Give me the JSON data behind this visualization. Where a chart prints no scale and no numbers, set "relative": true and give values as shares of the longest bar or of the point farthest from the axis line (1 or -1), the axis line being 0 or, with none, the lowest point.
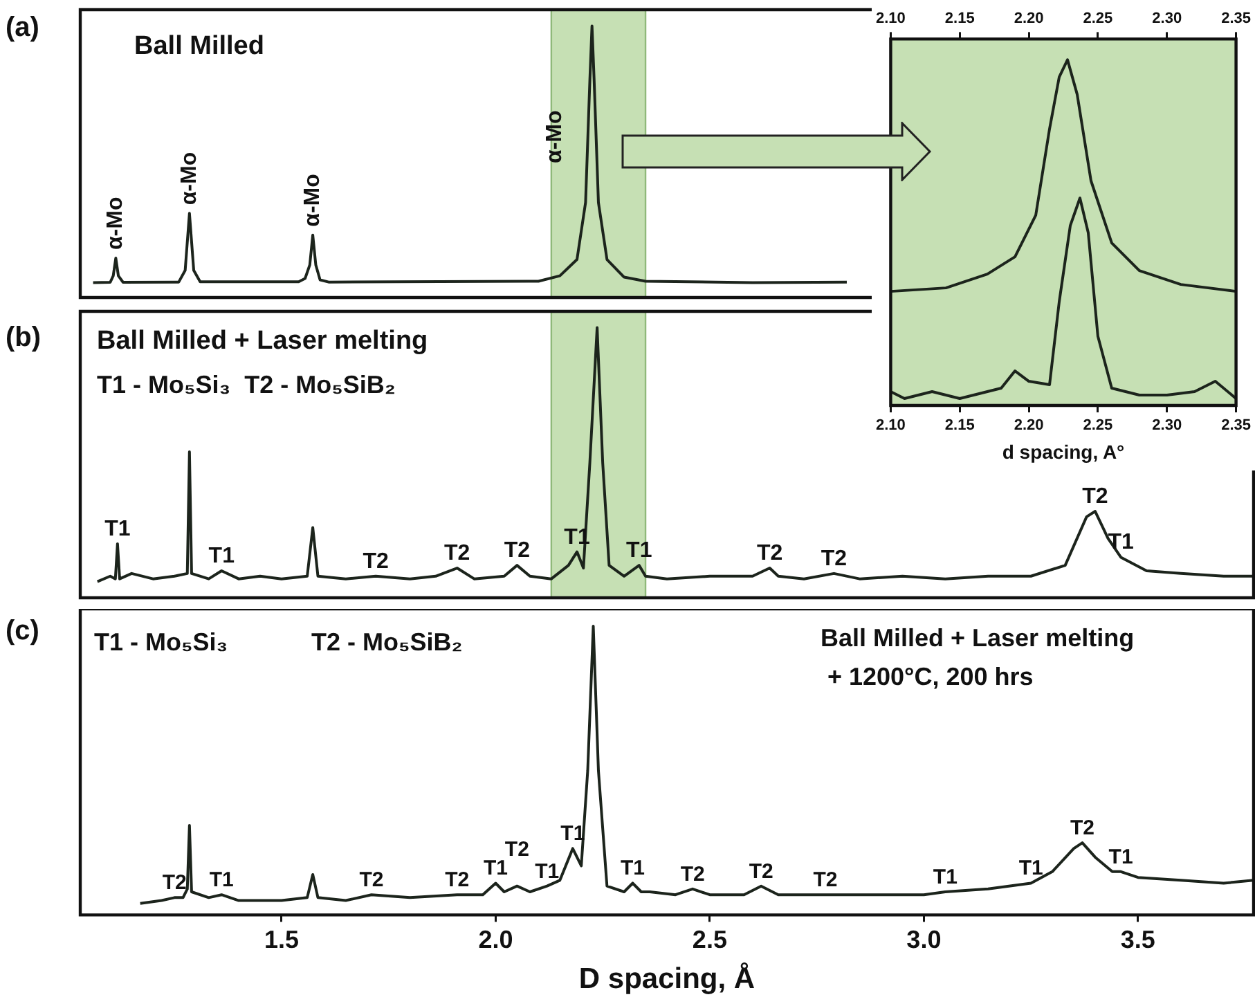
{
  "chart_data": [
    {
      "type": "line",
      "relative": true,
      "xlim": [
        1.03,
        3.77
      ],
      "tick_labels": false,
      "x": [
        1.06,
        1.1,
        1.107,
        1.113,
        1.119,
        1.13,
        1.26,
        1.275,
        1.285,
        1.295,
        1.31,
        1.54,
        1.555,
        1.566,
        1.573,
        1.58,
        1.59,
        1.61,
        2.1,
        2.15,
        2.19,
        2.21,
        2.22,
        2.225,
        2.23,
        2.24,
        2.26,
        2.3,
        2.35,
        2.6,
        2.82
      ],
      "series": [
        {
          "color": "#1c241c",
          "values": [
            0.055,
            0.056,
            0.08,
            0.145,
            0.08,
            0.056,
            0.057,
            0.1,
            0.31,
            0.1,
            0.058,
            0.058,
            0.07,
            0.12,
            0.23,
            0.12,
            0.065,
            0.057,
            0.06,
            0.08,
            0.14,
            0.35,
            0.8,
            1.0,
            0.8,
            0.35,
            0.14,
            0.075,
            0.06,
            0.055,
            0.057
          ]
        }
      ],
      "bands": [
        {
          "axis": "x",
          "from": 2.13,
          "to": 2.35,
          "color": "#c6e0b4"
        }
      ],
      "annotations": [
        "(a)",
        "Ball Milled",
        "α-Mo",
        {
          "text": "α-Mo",
          "x": 1.113,
          "y": 0.145
        },
        {
          "text": "α-Mo",
          "x": 1.285,
          "y": 0.31
        },
        {
          "text": "α-Mo",
          "x": 1.573,
          "y": 0.23
        }
      ]
    },
    {
      "type": "line",
      "relative": true,
      "xlim": [
        1.03,
        3.77
      ],
      "tick_labels": false,
      "x": [
        1.07,
        1.1,
        1.112,
        1.117,
        1.122,
        1.15,
        1.2,
        1.25,
        1.28,
        1.285,
        1.29,
        1.33,
        1.36,
        1.4,
        1.45,
        1.5,
        1.56,
        1.573,
        1.585,
        1.65,
        1.72,
        1.8,
        1.86,
        1.91,
        1.95,
        2.02,
        2.05,
        2.08,
        2.13,
        2.17,
        2.19,
        2.205,
        2.22,
        2.237,
        2.25,
        2.265,
        2.3,
        2.335,
        2.35,
        2.4,
        2.5,
        2.6,
        2.64,
        2.66,
        2.72,
        2.79,
        2.85,
        2.95,
        3.05,
        3.15,
        3.25,
        3.33,
        3.38,
        3.4,
        3.43,
        3.46,
        3.52,
        3.6,
        3.7,
        3.77
      ],
      "series": [
        {
          "color": "#1c241c",
          "values": [
            0.06,
            0.08,
            0.07,
            0.2,
            0.07,
            0.09,
            0.07,
            0.08,
            0.09,
            0.54,
            0.09,
            0.07,
            0.1,
            0.07,
            0.08,
            0.07,
            0.08,
            0.26,
            0.08,
            0.07,
            0.08,
            0.07,
            0.08,
            0.11,
            0.07,
            0.08,
            0.12,
            0.08,
            0.07,
            0.12,
            0.17,
            0.11,
            0.5,
            1.0,
            0.5,
            0.12,
            0.08,
            0.12,
            0.08,
            0.07,
            0.08,
            0.08,
            0.11,
            0.08,
            0.07,
            0.09,
            0.07,
            0.08,
            0.07,
            0.08,
            0.08,
            0.12,
            0.3,
            0.32,
            0.22,
            0.15,
            0.1,
            0.09,
            0.08,
            0.08
          ]
        }
      ],
      "bands": [
        {
          "axis": "x",
          "from": 2.13,
          "to": 2.35,
          "color": "#c6e0b4"
        }
      ],
      "annotations": [
        "(b)",
        "Ball Milled + Laser melting",
        "T1 - Mo₅Si₃  T2 - Mo₅SiB₂",
        {
          "text": "T1",
          "x": 1.117,
          "y": 0.2
        },
        {
          "text": "T1",
          "x": 1.36,
          "y": 0.1
        },
        {
          "text": "T2",
          "x": 1.72,
          "y": 0.08
        },
        {
          "text": "T2",
          "x": 1.91,
          "y": 0.11
        },
        {
          "text": "T2",
          "x": 2.05,
          "y": 0.12
        },
        {
          "text": "T1",
          "x": 2.19,
          "y": 0.17
        },
        {
          "text": "T1",
          "x": 2.335,
          "y": 0.12
        },
        {
          "text": "T2",
          "x": 2.64,
          "y": 0.11
        },
        {
          "text": "T2",
          "x": 2.79,
          "y": 0.09
        },
        {
          "text": "T2",
          "x": 3.4,
          "y": 0.32
        },
        {
          "text": "T1",
          "x": 3.46,
          "y": 0.15
        }
      ]
    },
    {
      "type": "line",
      "relative": true,
      "xlim": [
        1.03,
        3.77
      ],
      "tick_labels": "x",
      "xlabel": "D spacing, Å",
      "xticks": [
        {
          "value": 1.5,
          "label": "1.5"
        },
        {
          "value": 2,
          "label": "2.0"
        },
        {
          "value": 2.5,
          "label": "2.5"
        },
        {
          "value": 3,
          "label": "3.0"
        },
        {
          "value": 3.5,
          "label": "3.5"
        }
      ],
      "x": [
        1.17,
        1.22,
        1.25,
        1.27,
        1.28,
        1.285,
        1.29,
        1.33,
        1.36,
        1.4,
        1.5,
        1.56,
        1.573,
        1.585,
        1.65,
        1.71,
        1.8,
        1.91,
        1.97,
        2.0,
        2.02,
        2.05,
        2.08,
        2.12,
        2.15,
        2.18,
        2.2,
        2.215,
        2.228,
        2.24,
        2.26,
        2.3,
        2.32,
        2.34,
        2.36,
        2.42,
        2.46,
        2.5,
        2.58,
        2.62,
        2.66,
        2.77,
        2.9,
        3.0,
        3.05,
        3.15,
        3.25,
        3.3,
        3.35,
        3.37,
        3.4,
        3.44,
        3.46,
        3.5,
        3.6,
        3.7,
        3.77
      ],
      "series": [
        {
          "color": "#1c241c",
          "values": [
            0.04,
            0.05,
            0.06,
            0.06,
            0.09,
            0.31,
            0.08,
            0.06,
            0.07,
            0.05,
            0.05,
            0.06,
            0.14,
            0.06,
            0.05,
            0.07,
            0.06,
            0.07,
            0.07,
            0.11,
            0.08,
            0.1,
            0.08,
            0.1,
            0.12,
            0.23,
            0.17,
            0.5,
            1.0,
            0.5,
            0.1,
            0.08,
            0.11,
            0.08,
            0.08,
            0.07,
            0.09,
            0.07,
            0.07,
            0.1,
            0.07,
            0.07,
            0.07,
            0.07,
            0.08,
            0.09,
            0.11,
            0.15,
            0.23,
            0.25,
            0.2,
            0.15,
            0.15,
            0.13,
            0.12,
            0.11,
            0.12
          ]
        }
      ],
      "annotations": [
        "(c)",
        "T1 - Mo₅Si₃",
        "T2 - Mo₅SiB₂",
        "Ball Milled + Laser melting",
        "+ 1200°C, 200 hrs",
        {
          "text": "T2",
          "x": 1.25,
          "y": 0.06
        },
        {
          "text": "T1",
          "x": 1.36,
          "y": 0.07
        },
        {
          "text": "T2",
          "x": 1.71,
          "y": 0.07
        },
        {
          "text": "T2",
          "x": 1.91,
          "y": 0.07
        },
        {
          "text": "T1",
          "x": 2.0,
          "y": 0.11
        },
        {
          "text": "T2",
          "x": 2.05,
          "y": 0.1
        },
        {
          "text": "T1",
          "x": 2.12,
          "y": 0.1
        },
        {
          "text": "T1",
          "x": 2.18,
          "y": 0.23
        },
        {
          "text": "T1",
          "x": 2.32,
          "y": 0.11
        },
        {
          "text": "T2",
          "x": 2.46,
          "y": 0.09
        },
        {
          "text": "T2",
          "x": 2.62,
          "y": 0.1
        },
        {
          "text": "T2",
          "x": 2.77,
          "y": 0.07
        },
        {
          "text": "T1",
          "x": 3.05,
          "y": 0.08
        },
        {
          "text": "T1",
          "x": 3.25,
          "y": 0.11
        },
        {
          "text": "T2",
          "x": 3.37,
          "y": 0.25
        },
        {
          "text": "T1",
          "x": 3.46,
          "y": 0.15
        }
      ]
    },
    {
      "type": "line",
      "relative": true,
      "xlim": [
        2.1,
        2.35
      ],
      "x2lim": [
        2.1,
        2.35
      ],
      "tick_labels": "x",
      "xlabel": "d spacing, A°",
      "xticks": [
        {
          "value": 2.1,
          "label": "2.10"
        },
        2.15,
        {
          "value": 2.2,
          "label": "2.20"
        },
        2.25,
        {
          "value": 2.3,
          "label": "2.30"
        },
        2.35
      ],
      "x2ticks": [
        {
          "value": 2.1,
          "label": "2.10"
        },
        2.15,
        {
          "value": 2.2,
          "label": "2.20"
        },
        2.25,
        {
          "value": 2.3,
          "label": "2.30"
        },
        2.35
      ],
      "bands": [
        {
          "axis": "x",
          "from": 2.1,
          "to": 2.35,
          "color": "#c6e0b4"
        }
      ],
      "series": [
        {
          "color": "#1c241c",
          "x": [
            2.1,
            2.14,
            2.17,
            2.19,
            2.205,
            2.215,
            2.222,
            2.228,
            2.235,
            2.245,
            2.26,
            2.28,
            2.31,
            2.35
          ],
          "values": [
            0.33,
            0.34,
            0.38,
            0.43,
            0.55,
            0.8,
            0.95,
            1.0,
            0.9,
            0.65,
            0.47,
            0.39,
            0.35,
            0.33
          ]
        },
        {
          "color": "#1c241c",
          "x": [
            2.1,
            2.11,
            2.13,
            2.15,
            2.17,
            2.18,
            2.19,
            2.2,
            2.215,
            2.222,
            2.23,
            2.237,
            2.243,
            2.25,
            2.26,
            2.28,
            2.3,
            2.32,
            2.335,
            2.35
          ],
          "values": [
            0.04,
            0.02,
            0.04,
            0.02,
            0.04,
            0.05,
            0.1,
            0.07,
            0.06,
            0.3,
            0.52,
            0.6,
            0.5,
            0.2,
            0.05,
            0.03,
            0.03,
            0.04,
            0.07,
            0.02
          ]
        }
      ]
    }
  ]
}
